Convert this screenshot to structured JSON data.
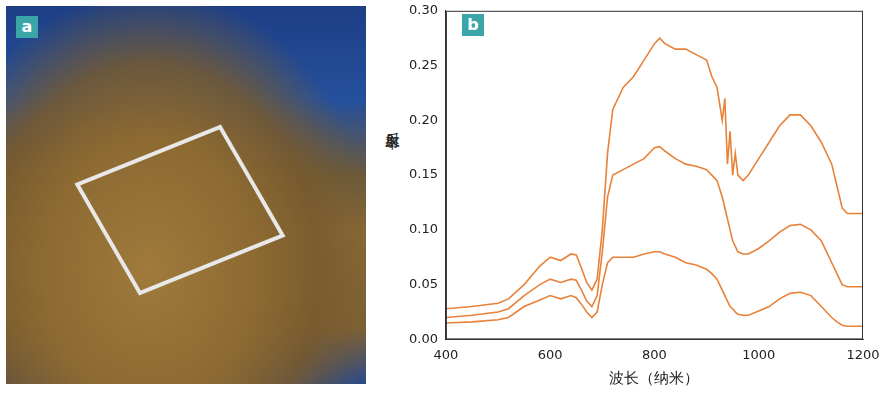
{
  "photo": {
    "label": "a"
  },
  "chart_data": {
    "type": "line",
    "label": "b",
    "x_label": "波长（纳米）",
    "y_label": "反射率",
    "xlim": [
      400,
      1200
    ],
    "xticks": [
      400,
      600,
      800,
      1000,
      1200
    ],
    "ylim": [
      0,
      0.3
    ],
    "yticks": [
      {
        "value": 0,
        "label": "0.00"
      },
      {
        "value": 0.05,
        "label": "0.05"
      },
      {
        "value": 0.1,
        "label": "0.10"
      },
      {
        "value": 0.15,
        "label": "0.15"
      },
      {
        "value": 0.2,
        "label": "0.20"
      },
      {
        "value": 0.25,
        "label": "0.25"
      },
      {
        "value": 0.3,
        "label": "0.30"
      }
    ],
    "grid": false,
    "x": [
      400,
      450,
      500,
      520,
      550,
      580,
      600,
      620,
      640,
      650,
      660,
      670,
      680,
      690,
      700,
      710,
      720,
      740,
      760,
      780,
      800,
      810,
      820,
      840,
      860,
      880,
      900,
      910,
      920,
      930,
      935,
      940,
      945,
      950,
      955,
      960,
      970,
      980,
      1000,
      1020,
      1040,
      1060,
      1080,
      1100,
      1120,
      1140,
      1150,
      1160,
      1170,
      1200
    ],
    "series": [
      {
        "color": "#e8823a",
        "values": [
          0.028,
          0.03,
          0.033,
          0.037,
          0.05,
          0.067,
          0.075,
          0.072,
          0.078,
          0.077,
          0.065,
          0.052,
          0.045,
          0.055,
          0.1,
          0.17,
          0.21,
          0.23,
          0.24,
          0.255,
          0.27,
          0.275,
          0.27,
          0.265,
          0.265,
          0.26,
          0.255,
          0.24,
          0.23,
          0.2,
          0.22,
          0.16,
          0.19,
          0.15,
          0.17,
          0.15,
          0.145,
          0.15,
          0.165,
          0.18,
          0.195,
          0.205,
          0.205,
          0.195,
          0.18,
          0.16,
          0.14,
          0.12,
          0.115,
          0.115
        ]
      },
      {
        "color": "#e8823a",
        "values": [
          0.02,
          0.022,
          0.025,
          0.028,
          0.04,
          0.05,
          0.055,
          0.052,
          0.055,
          0.054,
          0.045,
          0.035,
          0.03,
          0.04,
          0.08,
          0.13,
          0.15,
          0.155,
          0.16,
          0.165,
          0.175,
          0.176,
          0.172,
          0.165,
          0.16,
          0.158,
          0.155,
          0.15,
          0.145,
          0.13,
          0.12,
          0.11,
          0.1,
          0.09,
          0.085,
          0.08,
          0.078,
          0.078,
          0.083,
          0.09,
          0.098,
          0.104,
          0.105,
          0.1,
          0.09,
          0.07,
          0.06,
          0.05,
          0.048,
          0.048
        ]
      },
      {
        "color": "#e8823a",
        "values": [
          0.015,
          0.016,
          0.018,
          0.02,
          0.03,
          0.036,
          0.04,
          0.037,
          0.04,
          0.038,
          0.032,
          0.025,
          0.02,
          0.025,
          0.05,
          0.07,
          0.075,
          0.075,
          0.075,
          0.078,
          0.08,
          0.08,
          0.078,
          0.075,
          0.07,
          0.068,
          0.064,
          0.06,
          0.055,
          0.045,
          0.04,
          0.035,
          0.03,
          0.028,
          0.025,
          0.023,
          0.022,
          0.022,
          0.026,
          0.03,
          0.037,
          0.042,
          0.043,
          0.04,
          0.03,
          0.02,
          0.016,
          0.013,
          0.012,
          0.012
        ]
      }
    ]
  }
}
